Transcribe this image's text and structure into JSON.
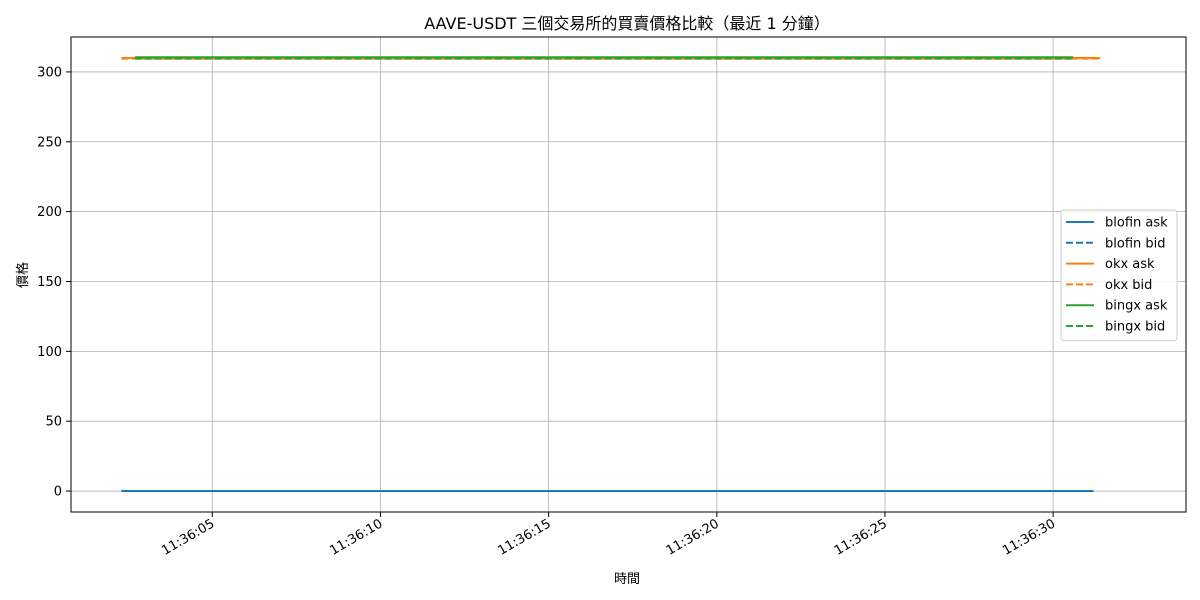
{
  "chart_data": {
    "type": "line",
    "title": "AAVE-USDT 三個交易所的買賣價格比較（最近 1 分鐘）",
    "xlabel": "時間",
    "ylabel": "價格",
    "xlim": [
      "11:36:00.800",
      "11:36:33.950"
    ],
    "ylim": [
      -15,
      325
    ],
    "xticks": [
      "11:36:05",
      "11:36:10",
      "11:36:15",
      "11:36:20",
      "11:36:25",
      "11:36:30"
    ],
    "yticks": [
      0,
      50,
      100,
      150,
      200,
      250,
      300
    ],
    "grid": true,
    "legend_position": "center-right",
    "series": [
      {
        "name": "blofin ask",
        "style": "solid",
        "color": "#1f77b4",
        "x": [
          "11:36:02.300",
          "11:36:31.200"
        ],
        "y": [
          0,
          0
        ]
      },
      {
        "name": "blofin bid",
        "style": "dashed",
        "color": "#1f77b4",
        "x": [
          "11:36:02.300",
          "11:36:31.200"
        ],
        "y": [
          0,
          0
        ]
      },
      {
        "name": "okx ask",
        "style": "solid",
        "color": "#ff7f0e",
        "x": [
          "11:36:02.300",
          "11:36:31.400"
        ],
        "y": [
          310,
          310
        ]
      },
      {
        "name": "okx bid",
        "style": "dashed",
        "color": "#ff7f0e",
        "x": [
          "11:36:02.300",
          "11:36:31.400"
        ],
        "y": [
          309.5,
          309.5
        ]
      },
      {
        "name": "bingx ask",
        "style": "solid",
        "color": "#2ca02c",
        "x": [
          "11:36:02.700",
          "11:36:30.600"
        ],
        "y": [
          310.5,
          310.5
        ]
      },
      {
        "name": "bingx bid",
        "style": "dashed",
        "color": "#2ca02c",
        "x": [
          "11:36:02.700",
          "11:36:30.600"
        ],
        "y": [
          309.5,
          309.5
        ]
      }
    ]
  }
}
